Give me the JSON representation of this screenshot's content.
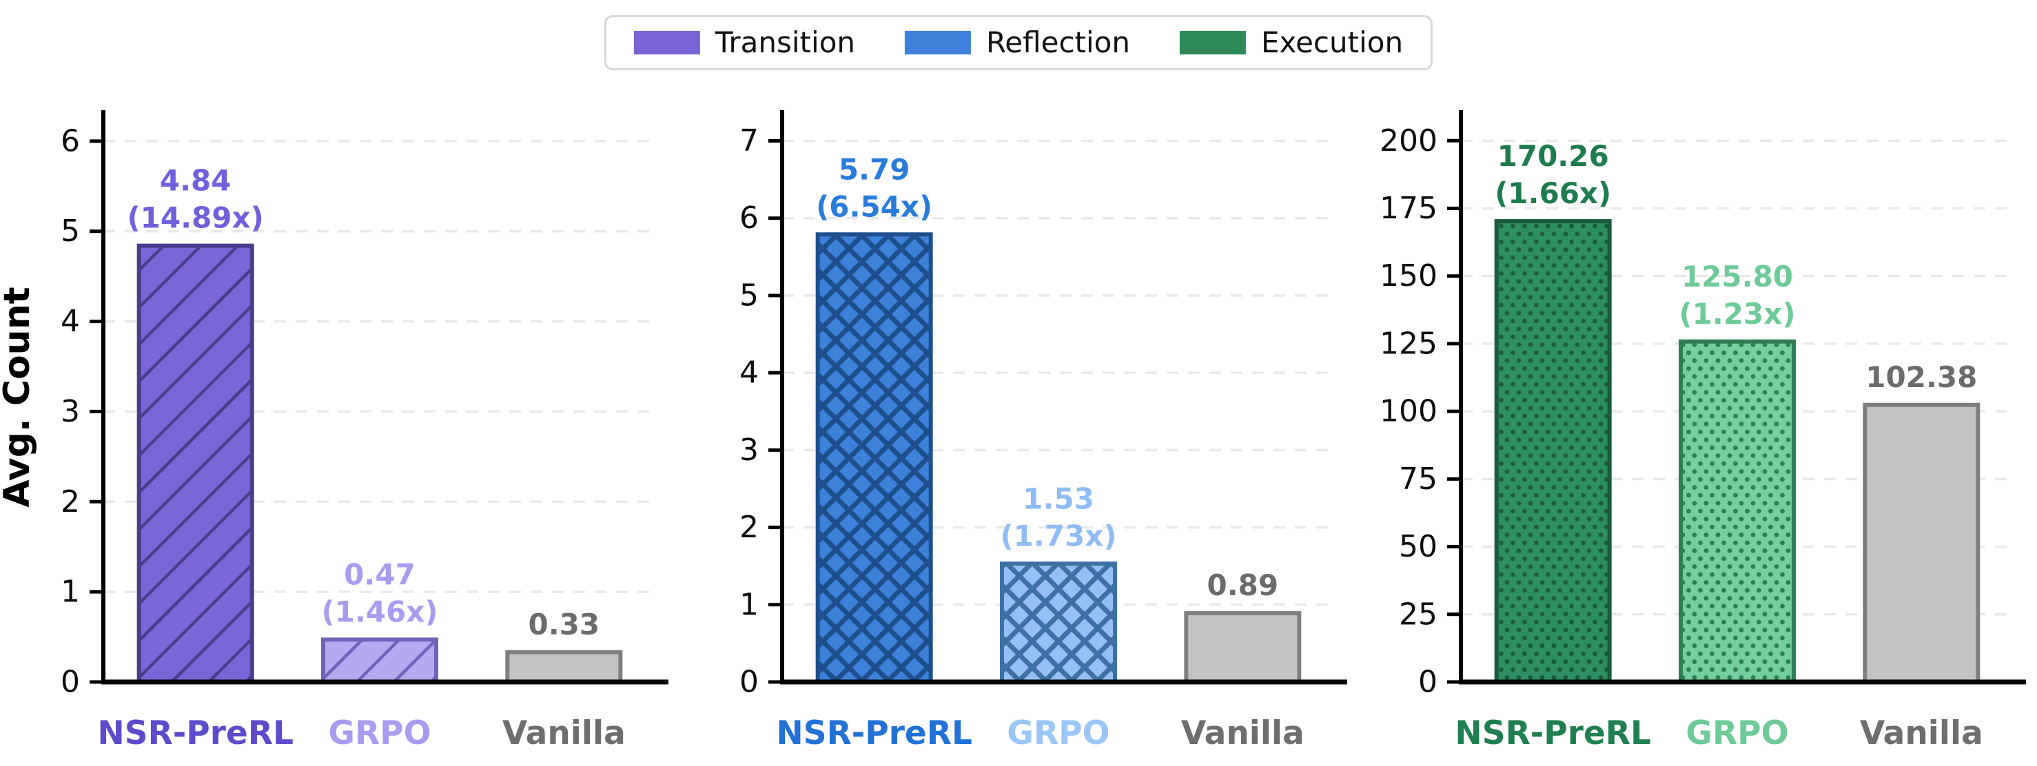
{
  "figure": {
    "background": "#ffffff",
    "ylabel": "Avg. Count"
  },
  "legend": {
    "items": [
      {
        "label": "Transition",
        "color": "#7963D7"
      },
      {
        "label": "Reflection",
        "color": "#3E81DB"
      },
      {
        "label": "Execution",
        "color": "#2E8B57"
      }
    ]
  },
  "chart_data": [
    {
      "type": "bar",
      "series_name": "Transition",
      "ylabel": "Avg. Count",
      "categories": [
        "NSR-PreRL",
        "GRPO",
        "Vanilla"
      ],
      "values": [
        4.84,
        0.47,
        0.33
      ],
      "value_labels": [
        "4.84",
        "0.47",
        "0.33"
      ],
      "multiplier_labels": [
        "(14.89x)",
        "(1.46x)",
        ""
      ],
      "yticks": [
        0,
        1,
        2,
        3,
        4,
        5,
        6
      ],
      "ylim": [
        0,
        6.32
      ],
      "grid": "dashed-horizontal",
      "hatch": "/",
      "bars": [
        {
          "fill": "#7A66D9",
          "hatch_color": "#483D8B",
          "border": "#483D8B",
          "value_color": "#7060DC",
          "label_color": "#5C4BCB"
        },
        {
          "fill": "#B6A9F0",
          "hatch_color": "#6F63B9",
          "border": "#6F63B9",
          "value_color": "#A99CF0",
          "label_color": "#A99CF0"
        },
        {
          "fill": "#C3C3C3",
          "hatch_color": null,
          "border": "#7F7F7F",
          "value_color": "#6B6B6B",
          "label_color": "#6E6E6E"
        }
      ]
    },
    {
      "type": "bar",
      "series_name": "Reflection",
      "ylabel": "",
      "categories": [
        "NSR-PreRL",
        "GRPO",
        "Vanilla"
      ],
      "values": [
        5.79,
        1.53,
        0.89
      ],
      "value_labels": [
        "5.79",
        "1.53",
        "0.89"
      ],
      "multiplier_labels": [
        "(6.54x)",
        "(1.73x)",
        ""
      ],
      "yticks": [
        0,
        1,
        2,
        3,
        4,
        5,
        6,
        7
      ],
      "ylim": [
        0,
        7.37
      ],
      "grid": "dashed-horizontal",
      "hatch": "x",
      "bars": [
        {
          "fill": "#3E81DB",
          "hatch_color": "#1E4F8D",
          "border": "#1E4F8D",
          "value_color": "#2A7CDB",
          "label_color": "#2271D6"
        },
        {
          "fill": "#94C0F4",
          "hatch_color": "#3E70A6",
          "border": "#3E70A6",
          "value_color": "#8FBCF4",
          "label_color": "#9CC5F7"
        },
        {
          "fill": "#C3C3C3",
          "hatch_color": null,
          "border": "#7F7F7F",
          "value_color": "#6B6B6B",
          "label_color": "#6E6E6E"
        }
      ]
    },
    {
      "type": "bar",
      "series_name": "Execution",
      "ylabel": "",
      "categories": [
        "NSR-PreRL",
        "GRPO",
        "Vanilla"
      ],
      "values": [
        170.26,
        125.8,
        102.38
      ],
      "value_labels": [
        "170.26",
        "125.80",
        "102.38"
      ],
      "multiplier_labels": [
        "(1.66x)",
        "(1.23x)",
        ""
      ],
      "yticks": [
        0,
        25,
        50,
        75,
        100,
        125,
        150,
        175,
        200
      ],
      "ylim": [
        0,
        210.5
      ],
      "grid": "dashed-horizontal",
      "hatch": ".",
      "bars": [
        {
          "fill": "#2E8F60",
          "hatch_color": "#1B5B3A",
          "border": "#1B5B3A",
          "value_color": "#1E7B4D",
          "label_color": "#1F7F50"
        },
        {
          "fill": "#74CE9D",
          "hatch_color": "#2F7D53",
          "border": "#2F7D53",
          "value_color": "#6CCB97",
          "label_color": "#6CCB97"
        },
        {
          "fill": "#C3C3C3",
          "hatch_color": null,
          "border": "#7F7F7F",
          "value_color": "#6B6B6B",
          "label_color": "#6E6E6E"
        }
      ]
    }
  ],
  "style": {
    "grid_color": "#E9E9E9",
    "spine_color": "#000000",
    "tick_label_color": "#0d0d0d"
  }
}
